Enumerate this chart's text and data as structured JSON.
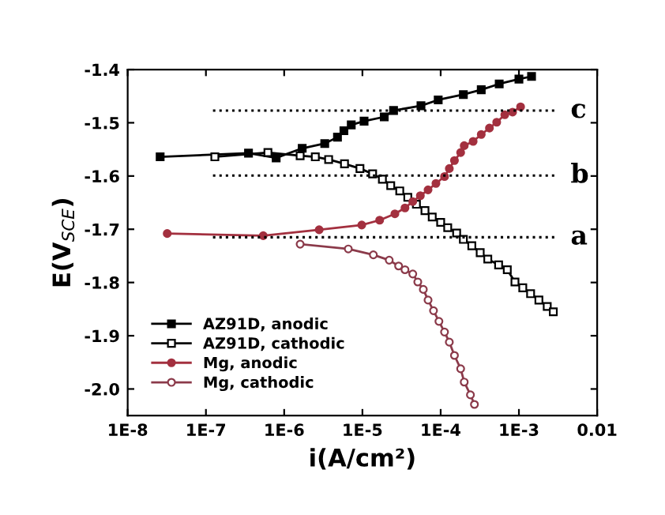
{
  "chart_data": {
    "type": "line",
    "xlabel": "i(A/cm²)",
    "ylabel": "E(V$_{SCE}$)",
    "log": "x",
    "xlim": [
      1e-08,
      0.01
    ],
    "ylim": [
      -2.05,
      -1.4
    ],
    "xticks": [
      {
        "value": 1e-08,
        "label": "1E-8"
      },
      {
        "value": 1e-07,
        "label": "1E-7"
      },
      {
        "value": 1e-06,
        "label": "1E-6"
      },
      {
        "value": 1e-05,
        "label": "1E-5"
      },
      {
        "value": 0.0001,
        "label": "1E-4"
      },
      {
        "value": 0.001,
        "label": "1E-3"
      },
      {
        "value": 0.01,
        "label": "0.01"
      }
    ],
    "yticks": [
      -1.4,
      -1.5,
      -1.6,
      -1.7,
      -1.8,
      -1.9,
      {
        "value": -2.0,
        "label": "-2.0"
      }
    ],
    "legend": "bottom left",
    "grid": false,
    "series": [
      {
        "name": "AZ91D, anodic",
        "color": "#000000",
        "marker": "square",
        "x": [
          2.6e-08,
          3.5e-07,
          7.9e-07,
          1.7e-06,
          3.3e-06,
          4.8e-06,
          5.8e-06,
          7.2e-06,
          1.05e-05,
          1.9e-05,
          2.5e-05,
          5.6e-05,
          9.3e-05,
          0.000195,
          0.00033,
          0.00056,
          0.001,
          0.00145
        ],
        "values": [
          -1.564,
          -1.557,
          -1.566,
          -1.548,
          -1.539,
          -1.527,
          -1.515,
          -1.504,
          -1.497,
          -1.489,
          -1.477,
          -1.468,
          -1.457,
          -1.447,
          -1.438,
          -1.427,
          -1.418,
          -1.413
        ]
      },
      {
        "name": "AZ91D, cathodic",
        "color": "#000000",
        "marker": "square",
        "x": [
          1.3e-07,
          6.2e-07,
          1.6e-06,
          2.5e-06,
          3.7e-06,
          5.9e-06,
          9.3e-06,
          1.35e-05,
          1.8e-05,
          2.3e-05,
          3e-05,
          3.8e-05,
          4.9e-05,
          6.3e-05,
          7.8e-05,
          0.0001,
          0.000123,
          0.00016,
          0.000195,
          0.00025,
          0.00032,
          0.0004,
          0.00055,
          0.00071,
          0.00089,
          0.00112,
          0.00141,
          0.0018,
          0.0023,
          0.00275
        ],
        "values": [
          -1.564,
          -1.556,
          -1.562,
          -1.564,
          -1.569,
          -1.577,
          -1.586,
          -1.596,
          -1.606,
          -1.618,
          -1.628,
          -1.64,
          -1.653,
          -1.665,
          -1.677,
          -1.687,
          -1.697,
          -1.707,
          -1.719,
          -1.731,
          -1.744,
          -1.756,
          -1.767,
          -1.776,
          -1.799,
          -1.81,
          -1.821,
          -1.833,
          -1.845,
          -1.855
        ]
      },
      {
        "name": "Mg, anodic",
        "color": "#a3303f",
        "marker": "circle",
        "x": [
          3.2e-08,
          5.4e-07,
          2.8e-06,
          9.8e-06,
          1.66e-05,
          2.6e-05,
          3.5e-05,
          4.4e-05,
          5.5e-05,
          6.9e-05,
          8.7e-05,
          0.000112,
          0.000129,
          0.00015,
          0.00018,
          0.0002,
          0.00026,
          0.00033,
          0.00042,
          0.00052,
          0.00066,
          0.00083,
          0.00105
        ],
        "values": [
          -1.708,
          -1.712,
          -1.701,
          -1.692,
          -1.683,
          -1.671,
          -1.66,
          -1.648,
          -1.637,
          -1.626,
          -1.614,
          -1.601,
          -1.586,
          -1.571,
          -1.556,
          -1.543,
          -1.535,
          -1.522,
          -1.51,
          -1.499,
          -1.485,
          -1.48,
          -1.47
        ]
      },
      {
        "name": "Mg, cathodic",
        "color": "#8b3a4a",
        "marker": "circle",
        "x": [
          1.6e-06,
          6.6e-06,
          1.38e-05,
          2.2e-05,
          2.9e-05,
          3.5e-05,
          4.4e-05,
          5.1e-05,
          6e-05,
          6.9e-05,
          8.1e-05,
          9.5e-05,
          0.000112,
          0.000129,
          0.00015,
          0.00018,
          0.0002,
          0.00024,
          0.00027
        ],
        "values": [
          -1.728,
          -1.737,
          -1.748,
          -1.758,
          -1.769,
          -1.776,
          -1.784,
          -1.799,
          -1.813,
          -1.833,
          -1.853,
          -1.873,
          -1.893,
          -1.912,
          -1.937,
          -1.962,
          -1.987,
          -2.011,
          -2.029
        ]
      },
      {
        "name": "a",
        "color": "#000000",
        "marker": "none",
        "line_style": "dotted",
        "x": [
          1.23e-07,
          0.0031
        ],
        "values": [
          -1.715,
          -1.715
        ]
      },
      {
        "name": "b",
        "color": "#000000",
        "marker": "none",
        "line_style": "dotted",
        "x": [
          1.23e-07,
          0.0031
        ],
        "values": [
          -1.599,
          -1.599
        ]
      },
      {
        "name": "c",
        "color": "#000000",
        "marker": "none",
        "line_style": "dotted",
        "x": [
          1.23e-07,
          0.0031
        ],
        "values": [
          -1.477,
          -1.477
        ]
      }
    ]
  }
}
